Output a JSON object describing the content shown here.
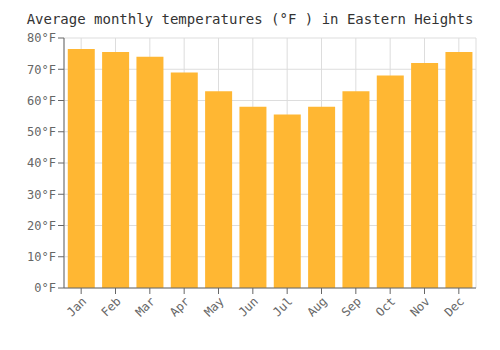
{
  "chart_data": {
    "type": "bar",
    "title": "Average monthly temperatures (°F ) in Eastern Heights",
    "categories": [
      "Jan",
      "Feb",
      "Mar",
      "Apr",
      "May",
      "Jun",
      "Jul",
      "Aug",
      "Sep",
      "Oct",
      "Nov",
      "Dec"
    ],
    "values": [
      76.5,
      75.5,
      74.0,
      69.0,
      63.0,
      58.0,
      55.5,
      58.0,
      63.0,
      68.0,
      72.0,
      75.5
    ],
    "color": "#FFB733",
    "ylim": [
      0,
      80
    ],
    "yticks": [
      {
        "value": 0,
        "label": "0°F"
      },
      {
        "value": 10,
        "label": "10°F"
      },
      {
        "value": 20,
        "label": "20°F"
      },
      {
        "value": 30,
        "label": "30°F"
      },
      {
        "value": 40,
        "label": "40°F"
      },
      {
        "value": 50,
        "label": "50°F"
      },
      {
        "value": 60,
        "label": "60°F"
      },
      {
        "value": 70,
        "label": "70°F"
      },
      {
        "value": 80,
        "label": "80°F"
      }
    ],
    "grid": true
  }
}
